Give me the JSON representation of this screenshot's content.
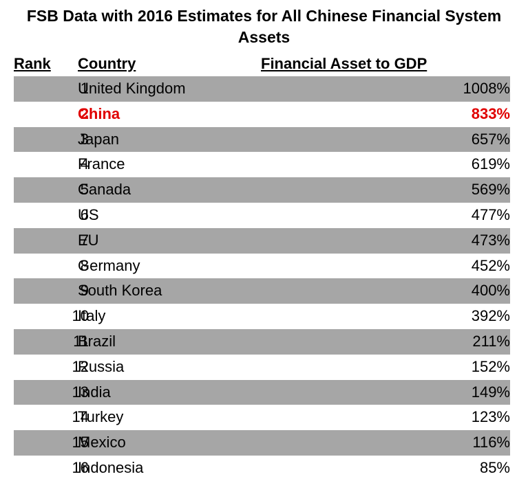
{
  "title": "FSB Data with 2016 Estimates for All Chinese Financial System Assets",
  "colors": {
    "stripe": "#a6a6a6",
    "highlight": "#e00000"
  },
  "chart_data": {
    "type": "table",
    "columns": [
      "Rank",
      "Country",
      "Financial Asset to GDP"
    ],
    "highlight_rank": 2,
    "rows": [
      {
        "rank": "1",
        "country": "United Kingdom",
        "value": "1008%"
      },
      {
        "rank": "2",
        "country": "China",
        "value": "833%"
      },
      {
        "rank": "3",
        "country": "Japan",
        "value": "657%"
      },
      {
        "rank": "4",
        "country": "France",
        "value": "619%"
      },
      {
        "rank": "5",
        "country": "Canada",
        "value": "569%"
      },
      {
        "rank": "6",
        "country": "US",
        "value": "477%"
      },
      {
        "rank": "7",
        "country": "EU",
        "value": "473%"
      },
      {
        "rank": "8",
        "country": "Germany",
        "value": "452%"
      },
      {
        "rank": "9",
        "country": "South Korea",
        "value": "400%"
      },
      {
        "rank": "10",
        "country": "Italy",
        "value": "392%"
      },
      {
        "rank": "11",
        "country": "Brazil",
        "value": "211%"
      },
      {
        "rank": "12",
        "country": "Russia",
        "value": "152%"
      },
      {
        "rank": "13",
        "country": "India",
        "value": "149%"
      },
      {
        "rank": "14",
        "country": "Turkey",
        "value": "123%"
      },
      {
        "rank": "15",
        "country": "Mexico",
        "value": "116%"
      },
      {
        "rank": "16",
        "country": "Indonesia",
        "value": "85%"
      }
    ]
  }
}
